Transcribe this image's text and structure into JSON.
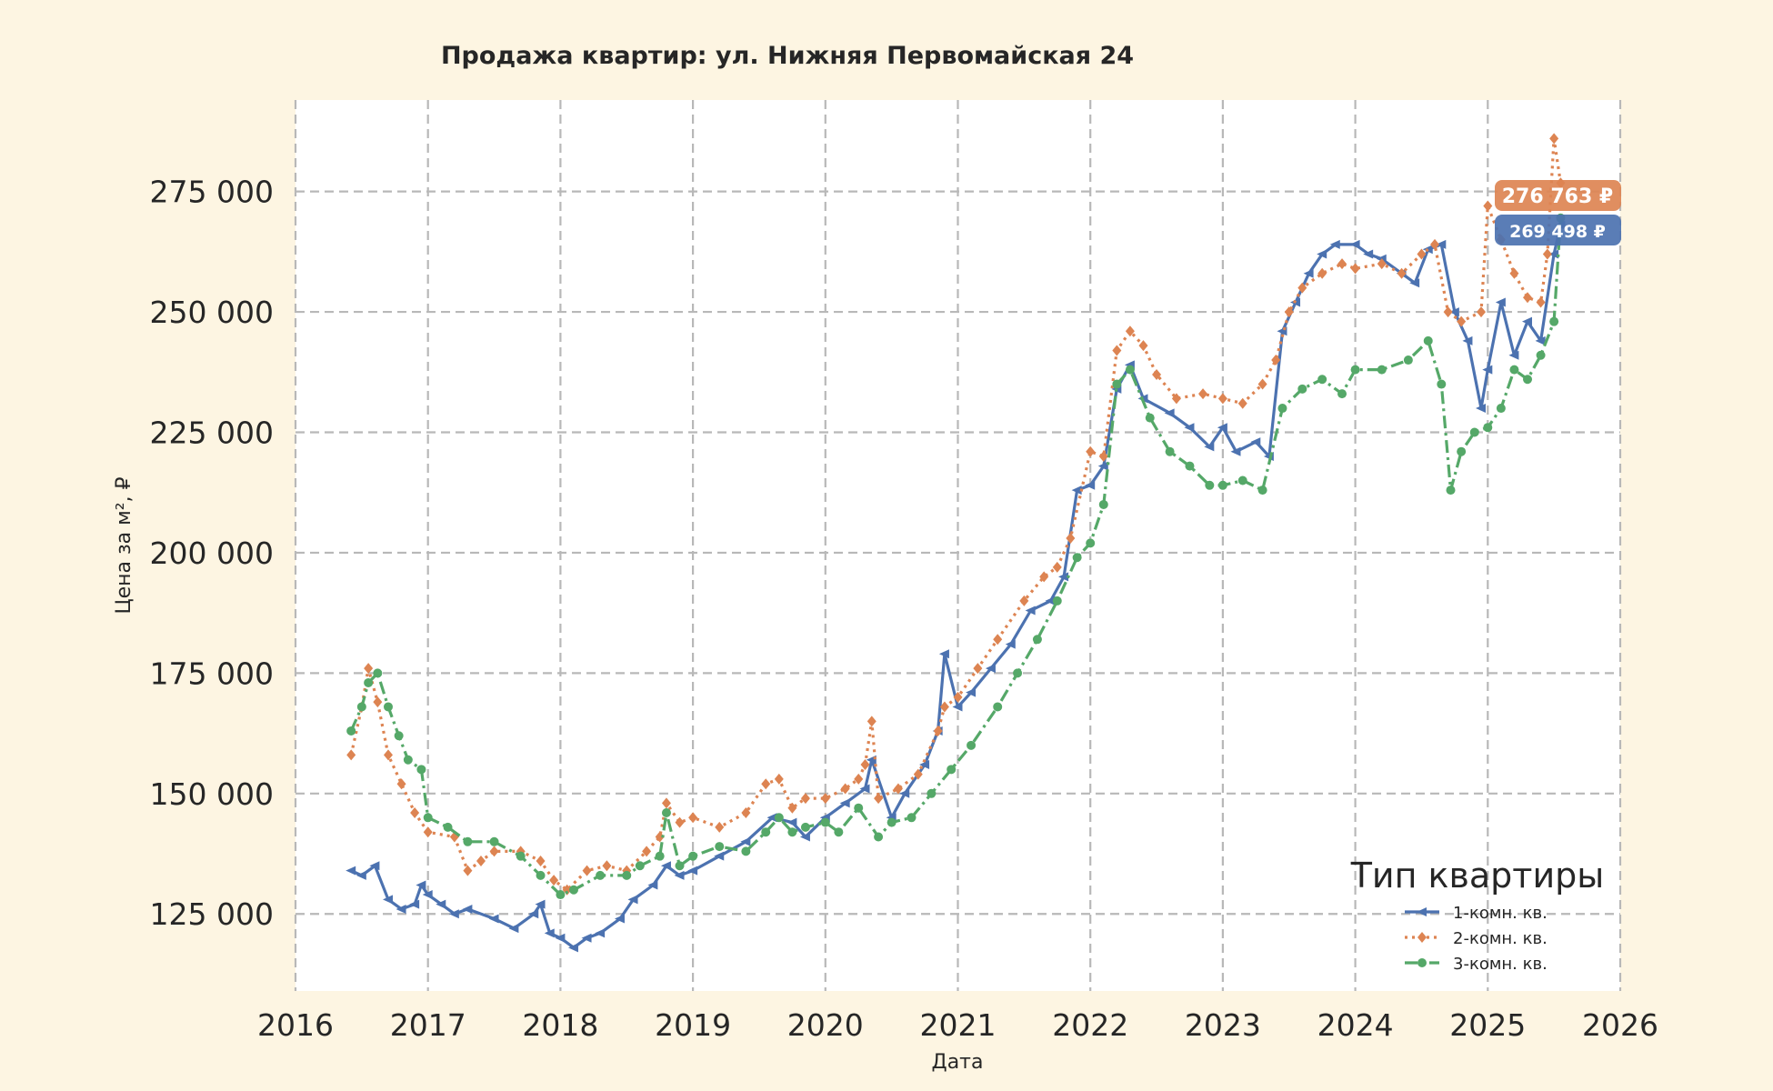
{
  "colors": {
    "background": "#fdf5e2",
    "plot_background": "#ffffff",
    "grid": "#b8b8b8",
    "text": "#262626",
    "series_1": "#4c72b0",
    "series_2": "#dd8452",
    "series_3": "#55a868"
  },
  "chart_data": {
    "type": "line",
    "title": "Продажа квартир: ул. Нижняя Первомайская 24",
    "xlabel": "Дата",
    "ylabel": "Цена за м², ₽",
    "xlim": [
      2016.0,
      2026.0
    ],
    "ylim": [
      109000,
      294000
    ],
    "x_ticks": [
      "2016",
      "2017",
      "2018",
      "2019",
      "2020",
      "2021",
      "2022",
      "2023",
      "2024",
      "2025",
      "2026"
    ],
    "y_ticks": [
      "125 000",
      "150 000",
      "175 000",
      "200 000",
      "225 000",
      "250 000",
      "275 000"
    ],
    "grid": true,
    "legend": {
      "title": "Тип квартиры",
      "placement": "lower-right"
    },
    "end_labels": [
      {
        "series": 2,
        "text": "276 763 ₽"
      },
      {
        "series": 1,
        "text": "269 498 ₽"
      }
    ],
    "series": [
      {
        "name": "1-комн. кв.",
        "line_style": "solid",
        "marker": "triangle",
        "x": [
          2016.42,
          2016.5,
          2016.6,
          2016.7,
          2016.8,
          2016.9,
          2016.95,
          2017.0,
          2017.1,
          2017.2,
          2017.3,
          2017.5,
          2017.65,
          2017.8,
          2017.85,
          2017.92,
          2018.0,
          2018.1,
          2018.2,
          2018.3,
          2018.45,
          2018.55,
          2018.7,
          2018.8,
          2018.9,
          2019.0,
          2019.2,
          2019.4,
          2019.6,
          2019.75,
          2019.85,
          2020.0,
          2020.15,
          2020.3,
          2020.35,
          2020.5,
          2020.6,
          2020.75,
          2020.85,
          2020.9,
          2021.0,
          2021.1,
          2021.25,
          2021.4,
          2021.55,
          2021.7,
          2021.8,
          2021.9,
          2022.0,
          2022.1,
          2022.2,
          2022.3,
          2022.4,
          2022.6,
          2022.75,
          2022.9,
          2023.0,
          2023.1,
          2023.25,
          2023.35,
          2023.45,
          2023.55,
          2023.65,
          2023.75,
          2023.85,
          2024.0,
          2024.1,
          2024.2,
          2024.35,
          2024.45,
          2024.55,
          2024.65,
          2024.75,
          2024.85,
          2024.95,
          2025.0,
          2025.1,
          2025.2,
          2025.3,
          2025.4,
          2025.5,
          2025.55
        ],
        "y": [
          134000,
          133000,
          135000,
          128000,
          126000,
          127000,
          131000,
          129000,
          127000,
          125000,
          126000,
          124000,
          122000,
          125000,
          127000,
          121000,
          120000,
          118000,
          120000,
          121000,
          124000,
          128000,
          131000,
          135000,
          133000,
          134000,
          137000,
          140000,
          145000,
          144000,
          141000,
          145000,
          148000,
          151000,
          157000,
          145000,
          150000,
          156000,
          163000,
          179000,
          168000,
          171000,
          176000,
          181000,
          188000,
          190000,
          195000,
          213000,
          214000,
          218000,
          234000,
          239000,
          232000,
          229000,
          226000,
          222000,
          226000,
          221000,
          223000,
          220000,
          246000,
          252000,
          258000,
          262000,
          264000,
          264000,
          262000,
          261000,
          258000,
          256000,
          263000,
          264000,
          250000,
          244000,
          230000,
          238000,
          252000,
          241000,
          248000,
          244000,
          262000,
          268000
        ]
      },
      {
        "name": "2-комн. кв.",
        "line_style": "dotted",
        "marker": "diamond",
        "x": [
          2016.42,
          2016.5,
          2016.55,
          2016.62,
          2016.7,
          2016.8,
          2016.9,
          2017.0,
          2017.2,
          2017.3,
          2017.4,
          2017.5,
          2017.7,
          2017.85,
          2017.95,
          2018.05,
          2018.2,
          2018.35,
          2018.5,
          2018.65,
          2018.75,
          2018.8,
          2018.9,
          2019.0,
          2019.2,
          2019.4,
          2019.55,
          2019.65,
          2019.75,
          2019.85,
          2020.0,
          2020.15,
          2020.25,
          2020.3,
          2020.35,
          2020.4,
          2020.55,
          2020.7,
          2020.85,
          2020.9,
          2021.0,
          2021.15,
          2021.3,
          2021.5,
          2021.65,
          2021.75,
          2021.85,
          2022.0,
          2022.1,
          2022.2,
          2022.3,
          2022.4,
          2022.5,
          2022.65,
          2022.85,
          2023.0,
          2023.15,
          2023.3,
          2023.4,
          2023.5,
          2023.6,
          2023.75,
          2023.9,
          2024.0,
          2024.2,
          2024.35,
          2024.5,
          2024.6,
          2024.7,
          2024.8,
          2024.95,
          2025.0,
          2025.1,
          2025.2,
          2025.3,
          2025.4,
          2025.45,
          2025.5,
          2025.55
        ],
        "y": [
          158000,
          168000,
          176000,
          169000,
          158000,
          152000,
          146000,
          142000,
          141000,
          134000,
          136000,
          138000,
          138000,
          136000,
          132000,
          130000,
          134000,
          135000,
          134000,
          138000,
          141000,
          148000,
          144000,
          145000,
          143000,
          146000,
          152000,
          153000,
          147000,
          149000,
          149000,
          151000,
          153000,
          156000,
          165000,
          149000,
          151000,
          154000,
          163000,
          168000,
          170000,
          176000,
          182000,
          190000,
          195000,
          197000,
          203000,
          221000,
          220000,
          242000,
          246000,
          243000,
          237000,
          232000,
          233000,
          232000,
          231000,
          235000,
          240000,
          250000,
          255000,
          258000,
          260000,
          259000,
          260000,
          258000,
          262000,
          264000,
          250000,
          248000,
          250000,
          272000,
          265000,
          258000,
          253000,
          252000,
          262000,
          286000,
          276763
        ]
      },
      {
        "name": "3-комн. кв.",
        "line_style": "dashdot",
        "marker": "circle",
        "x": [
          2016.42,
          2016.5,
          2016.55,
          2016.62,
          2016.7,
          2016.78,
          2016.85,
          2016.95,
          2017.0,
          2017.15,
          2017.3,
          2017.5,
          2017.7,
          2017.85,
          2018.0,
          2018.1,
          2018.3,
          2018.5,
          2018.6,
          2018.75,
          2018.8,
          2018.9,
          2019.0,
          2019.2,
          2019.4,
          2019.55,
          2019.65,
          2019.75,
          2019.85,
          2020.0,
          2020.1,
          2020.25,
          2020.4,
          2020.5,
          2020.65,
          2020.8,
          2020.95,
          2021.1,
          2021.3,
          2021.45,
          2021.6,
          2021.75,
          2021.9,
          2022.0,
          2022.1,
          2022.2,
          2022.3,
          2022.45,
          2022.6,
          2022.75,
          2022.9,
          2023.0,
          2023.15,
          2023.3,
          2023.45,
          2023.6,
          2023.75,
          2023.9,
          2024.0,
          2024.2,
          2024.4,
          2024.55,
          2024.65,
          2024.72,
          2024.8,
          2024.9,
          2025.0,
          2025.1,
          2025.2,
          2025.3,
          2025.4,
          2025.5,
          2025.55
        ],
        "y": [
          163000,
          168000,
          173000,
          175000,
          168000,
          162000,
          157000,
          155000,
          145000,
          143000,
          140000,
          140000,
          137000,
          133000,
          129000,
          130000,
          133000,
          133000,
          135000,
          137000,
          146000,
          135000,
          137000,
          139000,
          138000,
          142000,
          145000,
          142000,
          143000,
          144000,
          142000,
          147000,
          141000,
          144000,
          145000,
          150000,
          155000,
          160000,
          168000,
          175000,
          182000,
          190000,
          199000,
          202000,
          210000,
          235000,
          238000,
          228000,
          221000,
          218000,
          214000,
          214000,
          215000,
          213000,
          230000,
          234000,
          236000,
          233000,
          238000,
          238000,
          240000,
          244000,
          235000,
          213000,
          221000,
          225000,
          226000,
          230000,
          238000,
          236000,
          241000,
          248000,
          269498
        ]
      }
    ]
  }
}
